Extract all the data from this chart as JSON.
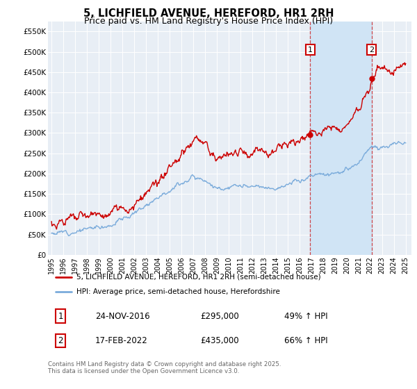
{
  "title": "5, LICHFIELD AVENUE, HEREFORD, HR1 2RH",
  "subtitle": "Price paid vs. HM Land Registry's House Price Index (HPI)",
  "title_fontsize": 10.5,
  "subtitle_fontsize": 9,
  "background_color": "#ffffff",
  "plot_bg_color": "#e8eef5",
  "grid_color": "#ffffff",
  "red_color": "#cc0000",
  "blue_color": "#7aabdb",
  "span_color": "#d0e4f5",
  "ylim": [
    0,
    575000
  ],
  "yticks": [
    0,
    50000,
    100000,
    150000,
    200000,
    250000,
    300000,
    350000,
    400000,
    450000,
    500000,
    550000
  ],
  "ytick_labels": [
    "£0",
    "£50K",
    "£100K",
    "£150K",
    "£200K",
    "£250K",
    "£300K",
    "£350K",
    "£400K",
    "£450K",
    "£500K",
    "£550K"
  ],
  "xlim_start": 1994.7,
  "xlim_end": 2025.5,
  "xticks": [
    1995,
    1996,
    1997,
    1998,
    1999,
    2000,
    2001,
    2002,
    2003,
    2004,
    2005,
    2006,
    2007,
    2008,
    2009,
    2010,
    2011,
    2012,
    2013,
    2014,
    2015,
    2016,
    2017,
    2018,
    2019,
    2020,
    2021,
    2022,
    2023,
    2024,
    2025
  ],
  "legend_label_red": "5, LICHFIELD AVENUE, HEREFORD, HR1 2RH (semi-detached house)",
  "legend_label_blue": "HPI: Average price, semi-detached house, Herefordshire",
  "marker1_x": 2016.92,
  "marker1_y": 295000,
  "marker1_label": "1",
  "marker1_date": "24-NOV-2016",
  "marker1_price": "£295,000",
  "marker1_hpi": "49% ↑ HPI",
  "marker2_x": 2022.12,
  "marker2_y": 435000,
  "marker2_label": "2",
  "marker2_date": "17-FEB-2022",
  "marker2_price": "£435,000",
  "marker2_hpi": "66% ↑ HPI",
  "footer": "Contains HM Land Registry data © Crown copyright and database right 2025.\nThis data is licensed under the Open Government Licence v3.0.",
  "vline1_x": 2016.92,
  "vline2_x": 2022.12
}
